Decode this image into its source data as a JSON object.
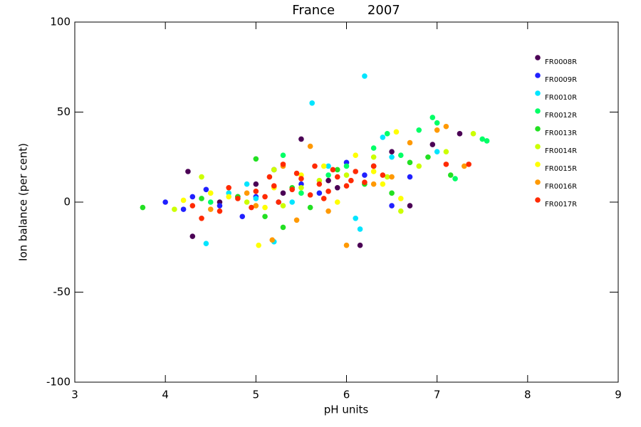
{
  "chart_data": {
    "type": "scatter",
    "title": "France        2007",
    "x_label": "pH units",
    "y_label": "Ion balance (per cent)",
    "xlim": [
      3,
      9
    ],
    "xticks": [
      3,
      4,
      5,
      6,
      7,
      8,
      9
    ],
    "ylim": [
      -100,
      100
    ],
    "yticks": [
      -100,
      -50,
      0,
      50,
      100
    ],
    "grid": false,
    "legend": "upper right",
    "series": [
      {
        "name": "FR0008R",
        "color": "#4b0055",
        "x": [
          4.25,
          4.3,
          5.5,
          6.15,
          6.95,
          7.25,
          5.2,
          5.8,
          4.8,
          5.3,
          6.5,
          6.7,
          4.6,
          5.9,
          6.3,
          5.0
        ],
        "values": [
          17,
          -19,
          35,
          -24,
          32,
          38,
          18,
          12,
          3,
          5,
          28,
          -2,
          0,
          8,
          20,
          10
        ]
      },
      {
        "name": "FR0009R",
        "color": "#2020ff",
        "x": [
          4.0,
          4.2,
          4.45,
          4.85,
          5.5,
          5.0,
          6.0,
          6.5,
          6.7,
          5.25,
          4.6,
          5.7,
          6.2,
          4.3
        ],
        "values": [
          0,
          -4,
          7,
          -8,
          10,
          3,
          22,
          -2,
          14,
          0,
          -2,
          5,
          15,
          3
        ]
      },
      {
        "name": "FR0010R",
        "color": "#00e5ff",
        "x": [
          4.45,
          5.2,
          5.62,
          6.2,
          6.15,
          6.1,
          7.0,
          6.4,
          5.0,
          5.8,
          5.4,
          4.9,
          6.5,
          4.7
        ],
        "values": [
          -23,
          -22,
          55,
          70,
          -15,
          -9,
          28,
          36,
          2,
          20,
          0,
          10,
          25,
          5
        ]
      },
      {
        "name": "FR0012R",
        "color": "#00ff66",
        "x": [
          6.95,
          7.0,
          7.5,
          7.55,
          6.8,
          6.45,
          5.3,
          6.6,
          7.2,
          5.8,
          4.5,
          5.5,
          6.0,
          6.3
        ],
        "values": [
          47,
          44,
          35,
          34,
          40,
          38,
          26,
          26,
          13,
          15,
          0,
          5,
          20,
          30
        ]
      },
      {
        "name": "FR0013R",
        "color": "#22e022",
        "x": [
          3.75,
          5.0,
          5.1,
          5.3,
          5.6,
          7.15,
          6.9,
          5.9,
          6.2,
          4.8,
          6.7,
          5.4,
          4.4,
          6.5
        ],
        "values": [
          -3,
          24,
          -8,
          -14,
          -3,
          15,
          25,
          18,
          10,
          3,
          22,
          8,
          2,
          5
        ]
      },
      {
        "name": "FR0014R",
        "color": "#ccff00",
        "x": [
          4.4,
          5.2,
          6.6,
          7.4,
          6.3,
          5.7,
          4.9,
          5.5,
          6.0,
          6.8,
          4.1,
          5.3,
          6.45,
          7.1
        ],
        "values": [
          14,
          18,
          -5,
          38,
          25,
          12,
          0,
          8,
          15,
          20,
          -4,
          -2,
          14,
          28
        ]
      },
      {
        "name": "FR0015R",
        "color": "#ffff00",
        "x": [
          5.03,
          6.6,
          6.55,
          6.3,
          5.9,
          5.5,
          4.7,
          5.2,
          6.1,
          4.2,
          6.4,
          5.75,
          5.1,
          4.5
        ],
        "values": [
          -24,
          2,
          39,
          17,
          0,
          15,
          3,
          8,
          26,
          1,
          10,
          20,
          -3,
          5
        ]
      },
      {
        "name": "FR0016R",
        "color": "#ff9900",
        "x": [
          5.18,
          5.45,
          6.0,
          7.1,
          7.0,
          7.3,
          5.6,
          6.7,
          5.8,
          6.3,
          5.3,
          4.9,
          5.0,
          6.5,
          4.5
        ],
        "values": [
          -21,
          -10,
          -24,
          42,
          40,
          20,
          31,
          33,
          -5,
          10,
          20,
          5,
          -2,
          14,
          -4
        ]
      },
      {
        "name": "FR0017R",
        "color": "#ff2a00",
        "x": [
          4.4,
          4.3,
          4.6,
          4.8,
          5.0,
          5.1,
          5.2,
          5.3,
          5.4,
          5.5,
          5.6,
          5.7,
          5.8,
          5.9,
          6.0,
          6.1,
          6.2,
          6.3,
          6.4,
          7.1,
          7.35,
          5.25,
          5.45,
          5.75,
          4.95,
          5.65,
          6.05,
          4.7,
          5.15,
          5.85
        ],
        "values": [
          -9,
          -2,
          -5,
          2,
          6,
          3,
          9,
          21,
          7,
          13,
          4,
          10,
          6,
          14,
          9,
          17,
          11,
          20,
          15,
          21,
          21,
          0,
          16,
          2,
          -3,
          20,
          12,
          8,
          14,
          18
        ]
      }
    ]
  }
}
